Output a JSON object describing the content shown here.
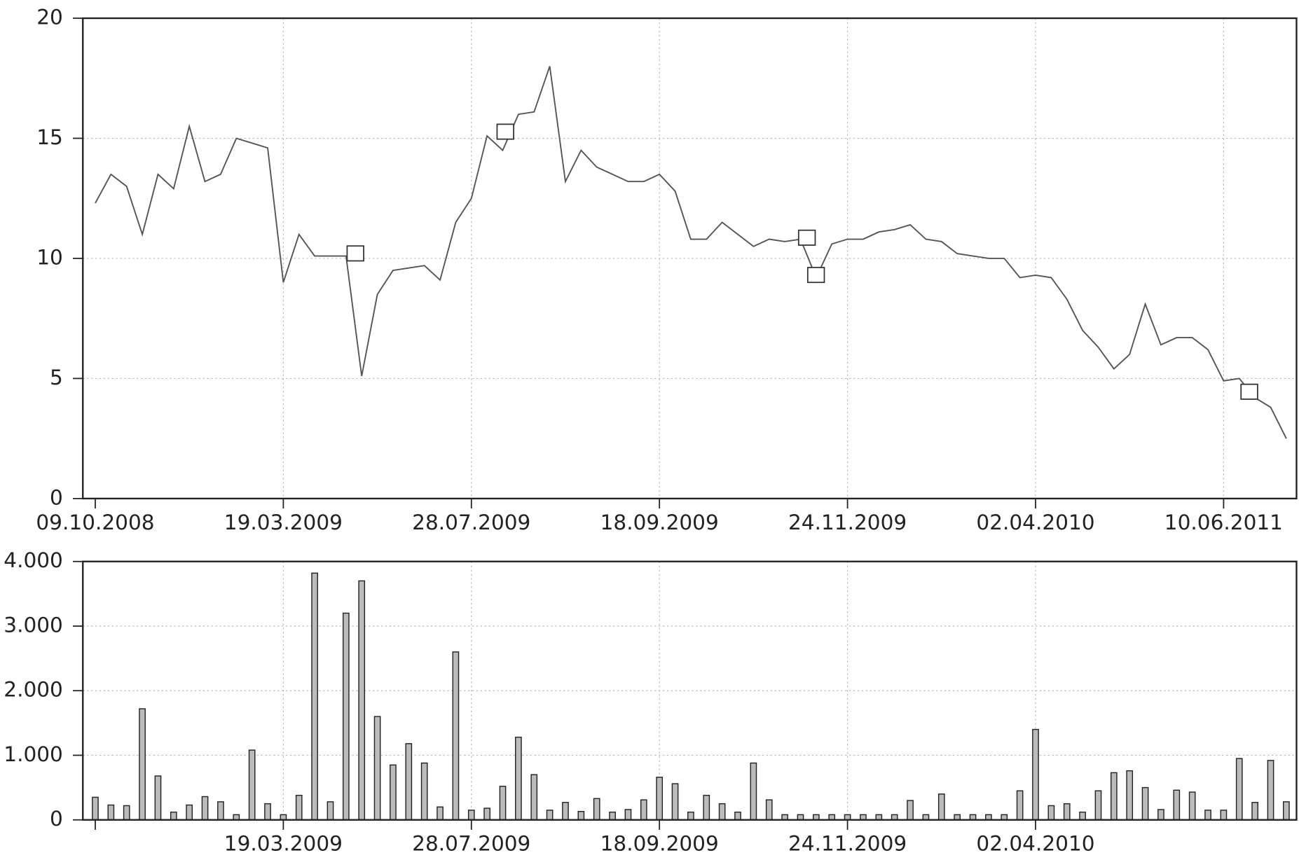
{
  "chart_data": [
    {
      "type": "line",
      "color": "#555555",
      "grid": true,
      "ylim": [
        0,
        20
      ],
      "yticks": [
        0,
        5,
        10,
        15,
        20
      ],
      "categories": [
        "09.10.2008",
        null,
        null,
        null,
        null,
        null,
        null,
        null,
        null,
        null,
        null,
        null,
        "19.03.2009",
        null,
        null,
        null,
        null,
        null,
        null,
        null,
        null,
        null,
        null,
        null,
        "28.07.2009",
        null,
        null,
        null,
        null,
        null,
        null,
        null,
        null,
        null,
        null,
        null,
        "18.09.2009",
        null,
        null,
        null,
        null,
        null,
        null,
        null,
        null,
        null,
        null,
        null,
        "24.11.2009",
        null,
        null,
        null,
        null,
        null,
        null,
        null,
        null,
        null,
        null,
        null,
        "02.04.2010",
        null,
        null,
        null,
        null,
        null,
        null,
        null,
        null,
        null,
        null,
        null,
        "10.06.2011",
        null,
        null,
        null,
        null
      ],
      "values": [
        12.3,
        13.5,
        13.0,
        11.0,
        13.5,
        12.9,
        15.5,
        13.2,
        13.5,
        15.0,
        14.8,
        14.6,
        9.0,
        11.0,
        10.1,
        10.1,
        10.1,
        5.1,
        8.5,
        9.5,
        9.6,
        9.7,
        9.1,
        11.5,
        12.5,
        15.1,
        14.5,
        16.0,
        16.1,
        18.0,
        13.2,
        14.5,
        13.8,
        13.5,
        13.2,
        13.2,
        13.5,
        12.8,
        10.8,
        10.8,
        11.5,
        11.0,
        10.5,
        10.8,
        10.7,
        10.8,
        9.2,
        10.6,
        10.8,
        10.8,
        11.1,
        11.2,
        11.4,
        10.8,
        10.7,
        10.2,
        10.1,
        10.0,
        10.0,
        9.2,
        9.3,
        9.2,
        8.3,
        7.0,
        6.3,
        5.4,
        6.0,
        8.1,
        6.4,
        6.7,
        6.7,
        6.2,
        4.9,
        5.0,
        4.2,
        3.8,
        2.5
      ]
    },
    {
      "type": "bar",
      "color": "#bbbbbb",
      "grid": true,
      "ylim": [
        0,
        4000
      ],
      "yticks": [
        0,
        {
          "value": 1000,
          "label": "1.000"
        },
        {
          "value": 2000,
          "label": "2.000"
        },
        {
          "value": 3000,
          "label": "3.000"
        },
        {
          "value": 4000,
          "label": "4.000"
        }
      ],
      "categories": [
        null,
        null,
        null,
        null,
        null,
        null,
        null,
        null,
        null,
        null,
        null,
        null,
        "19.03.2009",
        null,
        null,
        null,
        null,
        null,
        null,
        null,
        null,
        null,
        null,
        null,
        "28.07.2009",
        null,
        null,
        null,
        null,
        null,
        null,
        null,
        null,
        null,
        null,
        null,
        "18.09.2009",
        null,
        null,
        null,
        null,
        null,
        null,
        null,
        null,
        null,
        null,
        null,
        "24.11.2009",
        null,
        null,
        null,
        null,
        null,
        null,
        null,
        null,
        null,
        null,
        null,
        "02.04.2010",
        null,
        null,
        null,
        null,
        null,
        null,
        null,
        null,
        null,
        null,
        null,
        null,
        null,
        null,
        null,
        null
      ],
      "values": [
        350,
        230,
        220,
        1720,
        680,
        120,
        230,
        360,
        280,
        80,
        1080,
        250,
        80,
        380,
        3820,
        280,
        3200,
        3700,
        1600,
        850,
        1180,
        880,
        200,
        2600,
        150,
        180,
        520,
        1280,
        700,
        150,
        270,
        130,
        330,
        120,
        160,
        310,
        660,
        560,
        120,
        380,
        250,
        120,
        880,
        310,
        80,
        80,
        80,
        80,
        80,
        80,
        80,
        80,
        300,
        80,
        400,
        80,
        80,
        80,
        80,
        450,
        1400,
        220,
        250,
        120,
        450,
        730,
        760,
        500,
        160,
        460,
        430,
        150,
        150,
        950,
        270,
        920,
        280
      ]
    }
  ]
}
